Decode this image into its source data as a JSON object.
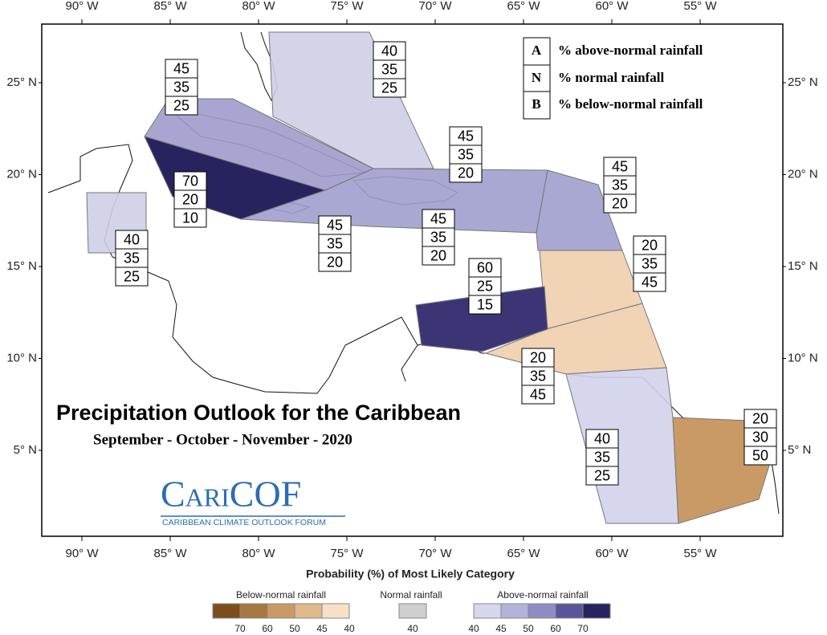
{
  "title": "Precipitation Outlook for the Caribbean",
  "subtitle": "September - October - November - 2020",
  "logo": {
    "name": "CariCOF",
    "tagline": "CARIBBEAN CLIMATE OUTLOOK FORUM"
  },
  "key": [
    {
      "letter": "A",
      "text": "% above-normal rainfall"
    },
    {
      "letter": "N",
      "text": "% normal rainfall"
    },
    {
      "letter": "B",
      "text": "% below-normal rainfall"
    }
  ],
  "longitude_labels": [
    "90° W",
    "85° W",
    "80° W",
    "75° W",
    "70° W",
    "65° W",
    "60° W",
    "55° W"
  ],
  "latitude_labels": [
    "25° N",
    "20° N",
    "15° N",
    "10° N",
    "5° N"
  ],
  "regions": [
    {
      "above": 40,
      "normal": 35,
      "below": 25
    },
    {
      "above": 45,
      "normal": 35,
      "below": 25
    },
    {
      "above": 70,
      "normal": 20,
      "below": 10
    },
    {
      "above": 40,
      "normal": 35,
      "below": 25
    },
    {
      "above": 45,
      "normal": 35,
      "below": 20
    },
    {
      "above": 45,
      "normal": 35,
      "below": 20
    },
    {
      "above": 45,
      "normal": 35,
      "below": 20
    },
    {
      "above": 45,
      "normal": 35,
      "below": 20
    },
    {
      "above": 20,
      "normal": 35,
      "below": 45
    },
    {
      "above": 60,
      "normal": 25,
      "below": 15
    },
    {
      "above": 20,
      "normal": 35,
      "below": 45
    },
    {
      "above": 40,
      "normal": 35,
      "below": 25
    },
    {
      "above": 20,
      "normal": 30,
      "below": 50
    }
  ],
  "legend": {
    "title": "Probability (%) of Most Likely Category",
    "groups": [
      {
        "label": "Below-normal rainfall",
        "ticks": [
          70,
          60,
          50,
          45,
          40
        ]
      },
      {
        "label": "Normal rainfall",
        "ticks": [
          40
        ]
      },
      {
        "label": "Above-normal rainfall",
        "ticks": [
          40,
          45,
          50,
          60,
          70
        ]
      }
    ]
  }
}
